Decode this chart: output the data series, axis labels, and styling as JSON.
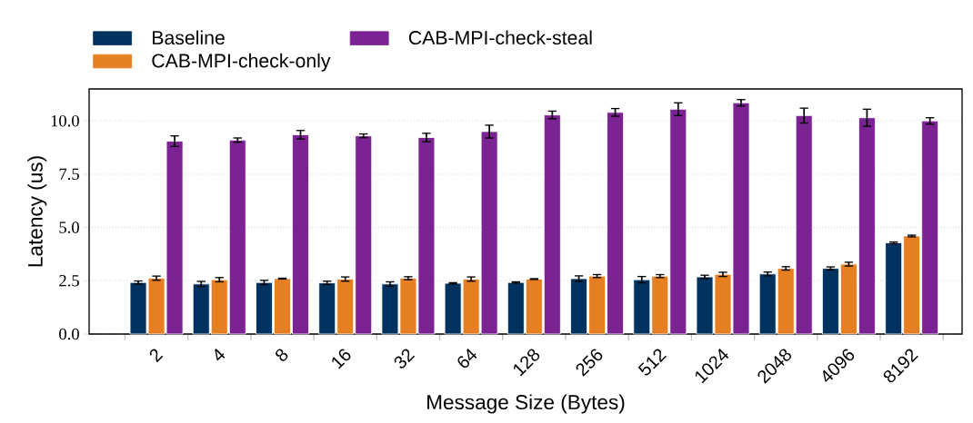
{
  "chart_data": {
    "type": "bar",
    "xlabel": "Message Size (Bytes)",
    "ylabel": "Latency (us)",
    "categories": [
      "2",
      "4",
      "8",
      "16",
      "32",
      "64",
      "128",
      "256",
      "512",
      "1024",
      "2048",
      "4096",
      "8192"
    ],
    "series": [
      {
        "name": "Baseline",
        "color": "#00325f",
        "values": [
          2.42,
          2.35,
          2.42,
          2.4,
          2.35,
          2.38,
          2.42,
          2.6,
          2.55,
          2.68,
          2.82,
          3.08,
          4.28
        ],
        "errors": [
          0.07,
          0.12,
          0.1,
          0.08,
          0.1,
          0.03,
          0.03,
          0.13,
          0.15,
          0.08,
          0.09,
          0.07,
          0.04
        ]
      },
      {
        "name": "CAB-MPI-check-only",
        "color": "#e67e22",
        "values": [
          2.62,
          2.55,
          2.6,
          2.58,
          2.62,
          2.58,
          2.58,
          2.72,
          2.72,
          2.8,
          3.08,
          3.28,
          4.6
        ],
        "errors": [
          0.1,
          0.1,
          0.02,
          0.1,
          0.07,
          0.1,
          0.02,
          0.07,
          0.07,
          0.1,
          0.08,
          0.09,
          0.04
        ]
      },
      {
        "name": "CAB-MPI-check-steal",
        "color": "#7b2393",
        "values": [
          9.05,
          9.1,
          9.35,
          9.3,
          9.22,
          9.5,
          10.28,
          10.4,
          10.55,
          10.85,
          10.25,
          10.15,
          10.0
        ],
        "errors": [
          0.25,
          0.1,
          0.2,
          0.09,
          0.2,
          0.3,
          0.18,
          0.18,
          0.3,
          0.15,
          0.35,
          0.4,
          0.15
        ]
      }
    ],
    "ylim": [
      0,
      11.5
    ],
    "yticks": [
      {
        "value": 0,
        "label": "0.0"
      },
      {
        "value": 2.5,
        "label": "2.5"
      },
      {
        "value": 5,
        "label": "5.0"
      },
      {
        "value": 7.5,
        "label": "7.5"
      },
      {
        "value": 10,
        "label": "10.0"
      }
    ],
    "grid": "y",
    "legend": "top"
  }
}
